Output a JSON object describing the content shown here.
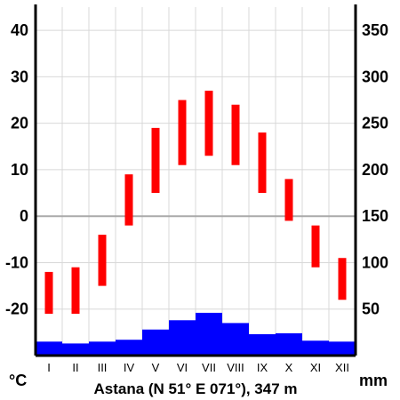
{
  "chart_data": {
    "type": "climate-diagram",
    "title": "Astana (N 51° E 071°), 347 m",
    "temp_unit": "°C",
    "precip_unit": "mm",
    "categories": [
      "I",
      "II",
      "III",
      "IV",
      "V",
      "VI",
      "VII",
      "VIII",
      "IX",
      "X",
      "XI",
      "XII"
    ],
    "temperature_axis": {
      "ticks": [
        "40",
        "30",
        "20",
        "10",
        "0",
        "-10",
        "-20"
      ],
      "tick_values": [
        40,
        30,
        20,
        10,
        0,
        -10,
        -20
      ],
      "range": [
        -30,
        45
      ]
    },
    "precipitation_axis": {
      "ticks": [
        "350",
        "300",
        "250",
        "200",
        "150",
        "100",
        "50"
      ],
      "tick_values": [
        350,
        300,
        250,
        200,
        150,
        100,
        50
      ],
      "range": [
        0,
        375
      ]
    },
    "series": [
      {
        "kind": "temperature-range",
        "color": "#ff0000",
        "min": [
          -21,
          -21,
          -15,
          -2,
          5,
          11,
          13,
          11,
          5,
          -1,
          -11,
          -18
        ],
        "max": [
          -12,
          -11,
          -4,
          9,
          19,
          25,
          27,
          24,
          18,
          8,
          -2,
          -9
        ]
      },
      {
        "kind": "precipitation",
        "color": "#0000ff",
        "values": [
          15,
          13,
          15,
          17,
          28,
          38,
          46,
          35,
          23,
          24,
          16,
          15
        ]
      }
    ],
    "grid": true,
    "zero_line_color": "#aaaaaa"
  }
}
